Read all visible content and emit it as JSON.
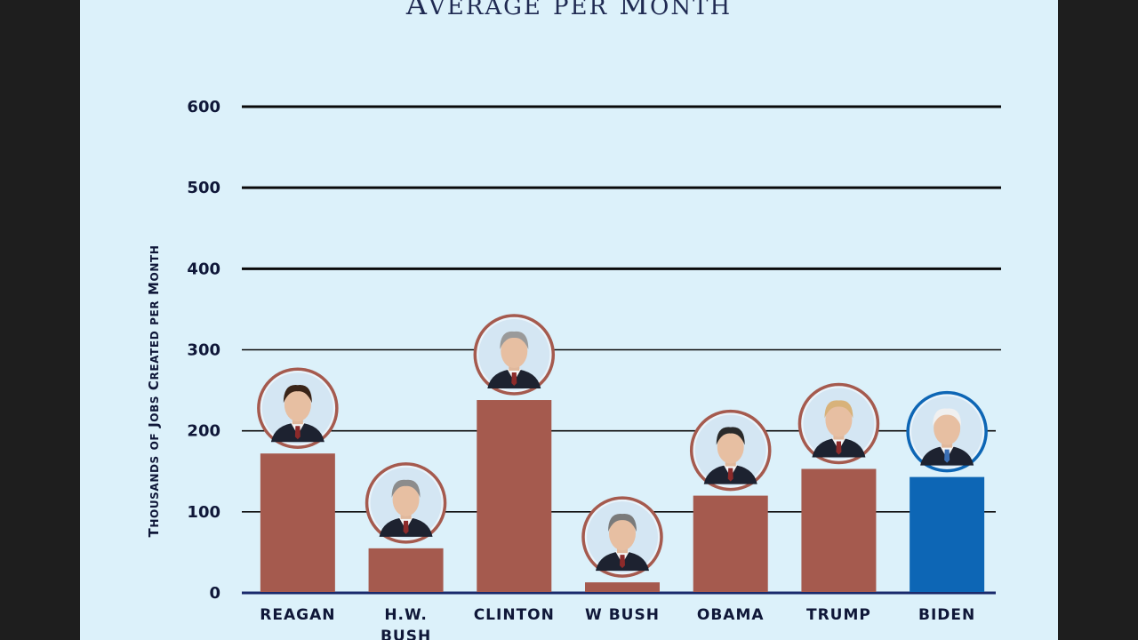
{
  "chart_data": {
    "type": "bar",
    "title": "Average per Month",
    "ylabel": "Thousands of Jobs Created per Month",
    "xlabel": "",
    "ylim": [
      0,
      600
    ],
    "yticks": [
      0,
      100,
      200,
      300,
      400,
      500,
      600
    ],
    "ytick_labels": [
      "0",
      "100",
      "200",
      "300",
      "400",
      "500",
      "600"
    ],
    "grid": true,
    "categories": [
      "REAGAN",
      "H.W. BUSH",
      "CLINTON",
      "W BUSH",
      "OBAMA",
      "TRUMP",
      "BIDEN"
    ],
    "values": [
      172,
      55,
      238,
      13,
      120,
      153,
      143
    ],
    "bar_colors": [
      "#a55a4e",
      "#a55a4e",
      "#a55a4e",
      "#a55a4e",
      "#a55a4e",
      "#a55a4e",
      "#0d66b5"
    ],
    "portrait_ring_colors": [
      "#a55a4e",
      "#a55a4e",
      "#a55a4e",
      "#a55a4e",
      "#a55a4e",
      "#a55a4e",
      "#0d66b5"
    ]
  }
}
